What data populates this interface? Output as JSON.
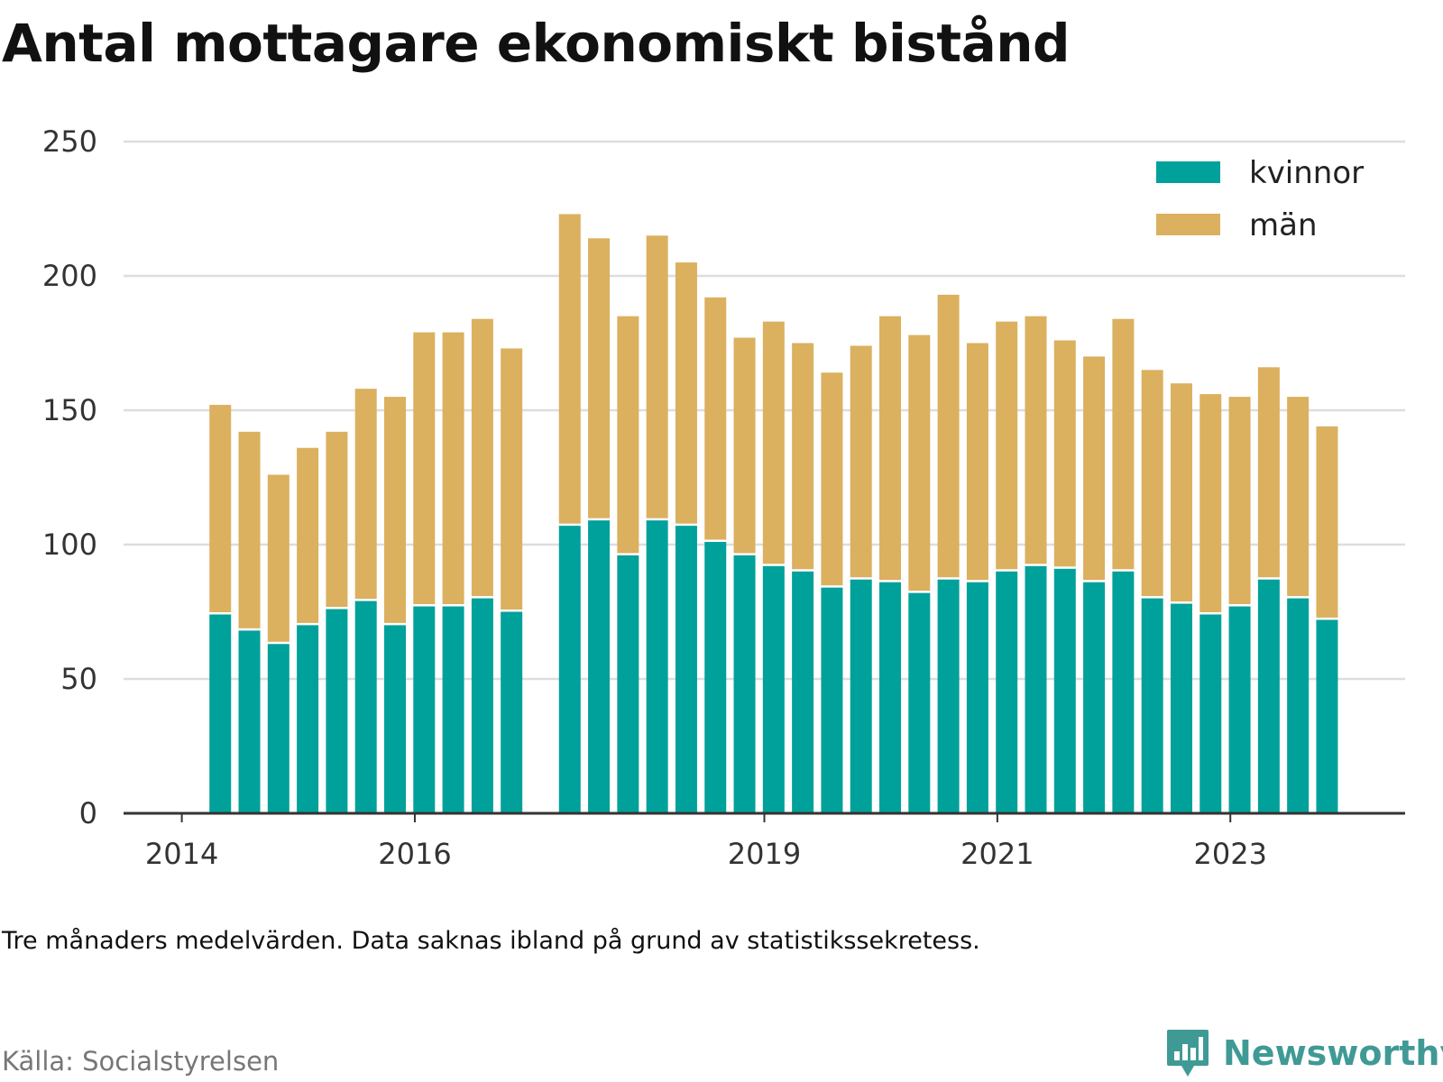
{
  "title": "Antal mottagare ekonomiskt bistånd",
  "note": "Tre månaders medelvärden. Data saknas ibland på grund av statistikssekretess.",
  "source": "Källa: Socialstyrelsen",
  "brand": {
    "name": "Newsworthy",
    "icon": "newsworthy-logo-icon",
    "color": "#3f9a96"
  },
  "colors": {
    "kvinnor": "#00a19a",
    "man": "#dbb05f",
    "grid": "#dddddd",
    "axis": "#333333"
  },
  "chart_data": {
    "type": "bar",
    "stacked": true,
    "xticks": [
      {
        "label": "2014",
        "pos": 2014.0
      },
      {
        "label": "2016",
        "pos": 2016.0
      },
      {
        "label": "2019",
        "pos": 2019.0
      },
      {
        "label": "2021",
        "pos": 2021.0
      },
      {
        "label": "2023",
        "pos": 2023.0
      }
    ],
    "xlim": [
      2013.5,
      2024.5
    ],
    "ylim": [
      0,
      250
    ],
    "yticks": [
      0,
      50,
      100,
      150,
      200,
      250
    ],
    "grid": true,
    "legend_position": "top-right",
    "x": [
      2014.33,
      2014.58,
      2014.83,
      2015.08,
      2015.33,
      2015.58,
      2015.83,
      2016.08,
      2016.33,
      2016.58,
      2016.83,
      2017.33,
      2017.58,
      2017.83,
      2018.08,
      2018.33,
      2018.58,
      2018.83,
      2019.08,
      2019.33,
      2019.58,
      2019.83,
      2020.08,
      2020.33,
      2020.58,
      2020.83,
      2021.08,
      2021.33,
      2021.58,
      2021.83,
      2022.08,
      2022.33,
      2022.58,
      2022.83,
      2023.08,
      2023.33,
      2023.58,
      2023.83
    ],
    "series": [
      {
        "name": "kvinnor",
        "values": [
          74,
          68,
          63,
          70,
          76,
          79,
          70,
          77,
          77,
          80,
          75,
          107,
          109,
          96,
          109,
          107,
          101,
          96,
          92,
          90,
          84,
          87,
          86,
          82,
          87,
          86,
          90,
          92,
          91,
          86,
          90,
          80,
          78,
          74,
          77,
          87,
          80,
          72
        ]
      },
      {
        "name": "män",
        "values": [
          78,
          74,
          63,
          66,
          66,
          79,
          85,
          102,
          102,
          104,
          98,
          116,
          105,
          89,
          106,
          98,
          91,
          81,
          91,
          85,
          80,
          87,
          99,
          96,
          106,
          89,
          93,
          93,
          85,
          84,
          94,
          85,
          82,
          82,
          78,
          79,
          75,
          72
        ]
      }
    ]
  }
}
